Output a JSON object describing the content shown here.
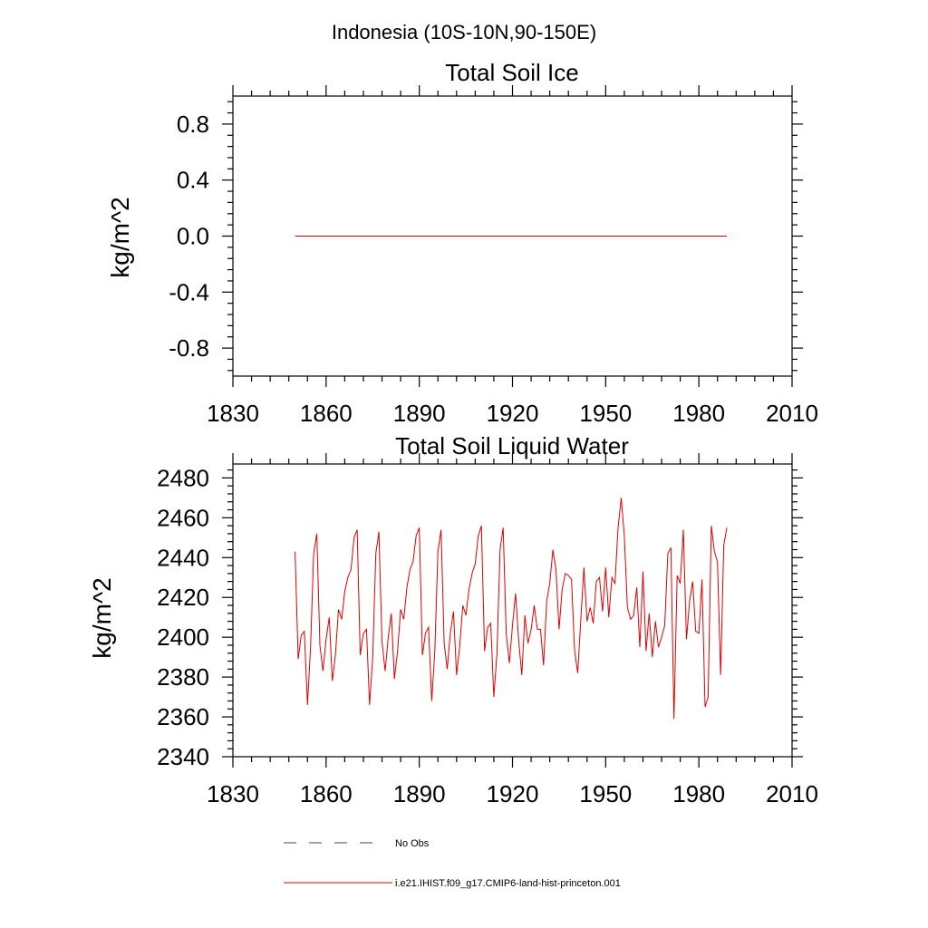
{
  "suptitle": "Indonesia (10S-10N,90-150E)",
  "legend": {
    "items": [
      {
        "label": "No Obs",
        "color": "#3a4a8a",
        "dash": "14,14"
      },
      {
        "label": "i.e21.IHIST.f09_g17.CMIP6-land-hist-princeton.001",
        "color": "#e00000",
        "dash": ""
      }
    ]
  },
  "colors": {
    "series": "#e00000",
    "axis": "#000000"
  },
  "chart_data": [
    {
      "type": "line",
      "title": "Total Soil Ice",
      "xlabel": "",
      "ylabel": "kg/m^2",
      "xlim": [
        1830,
        2010
      ],
      "ylim": [
        -1.0,
        1.0
      ],
      "xticks": [
        1830,
        1860,
        1890,
        1920,
        1950,
        1980,
        2010
      ],
      "yticks": [
        -0.8,
        -0.4,
        0.0,
        0.4,
        0.8
      ],
      "ytick_labels": [
        "-0.8",
        "-0.4",
        "0.0",
        "0.4",
        "0.8"
      ],
      "series": [
        {
          "x": [
            1850,
            1989
          ],
          "values": [
            0.0,
            0.0
          ]
        }
      ]
    },
    {
      "type": "line",
      "title": "Total Soil Liquid Water",
      "xlabel": "",
      "ylabel": "kg/m^2",
      "xlim": [
        1830,
        2010
      ],
      "ylim": [
        2340,
        2487
      ],
      "xticks": [
        1830,
        1860,
        1890,
        1920,
        1950,
        1980,
        2010
      ],
      "yticks": [
        2340,
        2360,
        2380,
        2400,
        2420,
        2440,
        2460,
        2480
      ],
      "ytick_labels": [
        "2340",
        "2360",
        "2380",
        "2400",
        "2420",
        "2440",
        "2460",
        "2480"
      ],
      "series": [
        {
          "x_start": 1850,
          "values": [
            2443,
            2389,
            2401,
            2403,
            2366,
            2395,
            2442,
            2452,
            2396,
            2383,
            2399,
            2410,
            2378,
            2391,
            2414,
            2409,
            2423,
            2430,
            2434,
            2450,
            2454,
            2391,
            2402,
            2404,
            2366,
            2390,
            2442,
            2453,
            2398,
            2383,
            2400,
            2412,
            2379,
            2393,
            2414,
            2409,
            2425,
            2434,
            2438,
            2451,
            2455,
            2391,
            2402,
            2405,
            2368,
            2393,
            2443,
            2454,
            2397,
            2384,
            2402,
            2413,
            2381,
            2395,
            2416,
            2411,
            2424,
            2432,
            2437,
            2451,
            2456,
            2393,
            2405,
            2407,
            2370,
            2392,
            2444,
            2455,
            2402,
            2387,
            2406,
            2422,
            2398,
            2381,
            2411,
            2397,
            2404,
            2416,
            2404,
            2404,
            2386,
            2418,
            2427,
            2444,
            2434,
            2404,
            2424,
            2432,
            2431,
            2429,
            2393,
            2382,
            2409,
            2435,
            2408,
            2415,
            2407,
            2428,
            2430,
            2413,
            2435,
            2410,
            2430,
            2427,
            2455,
            2470,
            2451,
            2415,
            2409,
            2411,
            2425,
            2395,
            2433,
            2393,
            2412,
            2390,
            2408,
            2395,
            2400,
            2406,
            2442,
            2445,
            2359,
            2431,
            2427,
            2454,
            2399,
            2418,
            2428,
            2403,
            2402,
            2429,
            2365,
            2370,
            2456,
            2443,
            2438,
            2381,
            2446,
            2455
          ]
        }
      ]
    }
  ]
}
